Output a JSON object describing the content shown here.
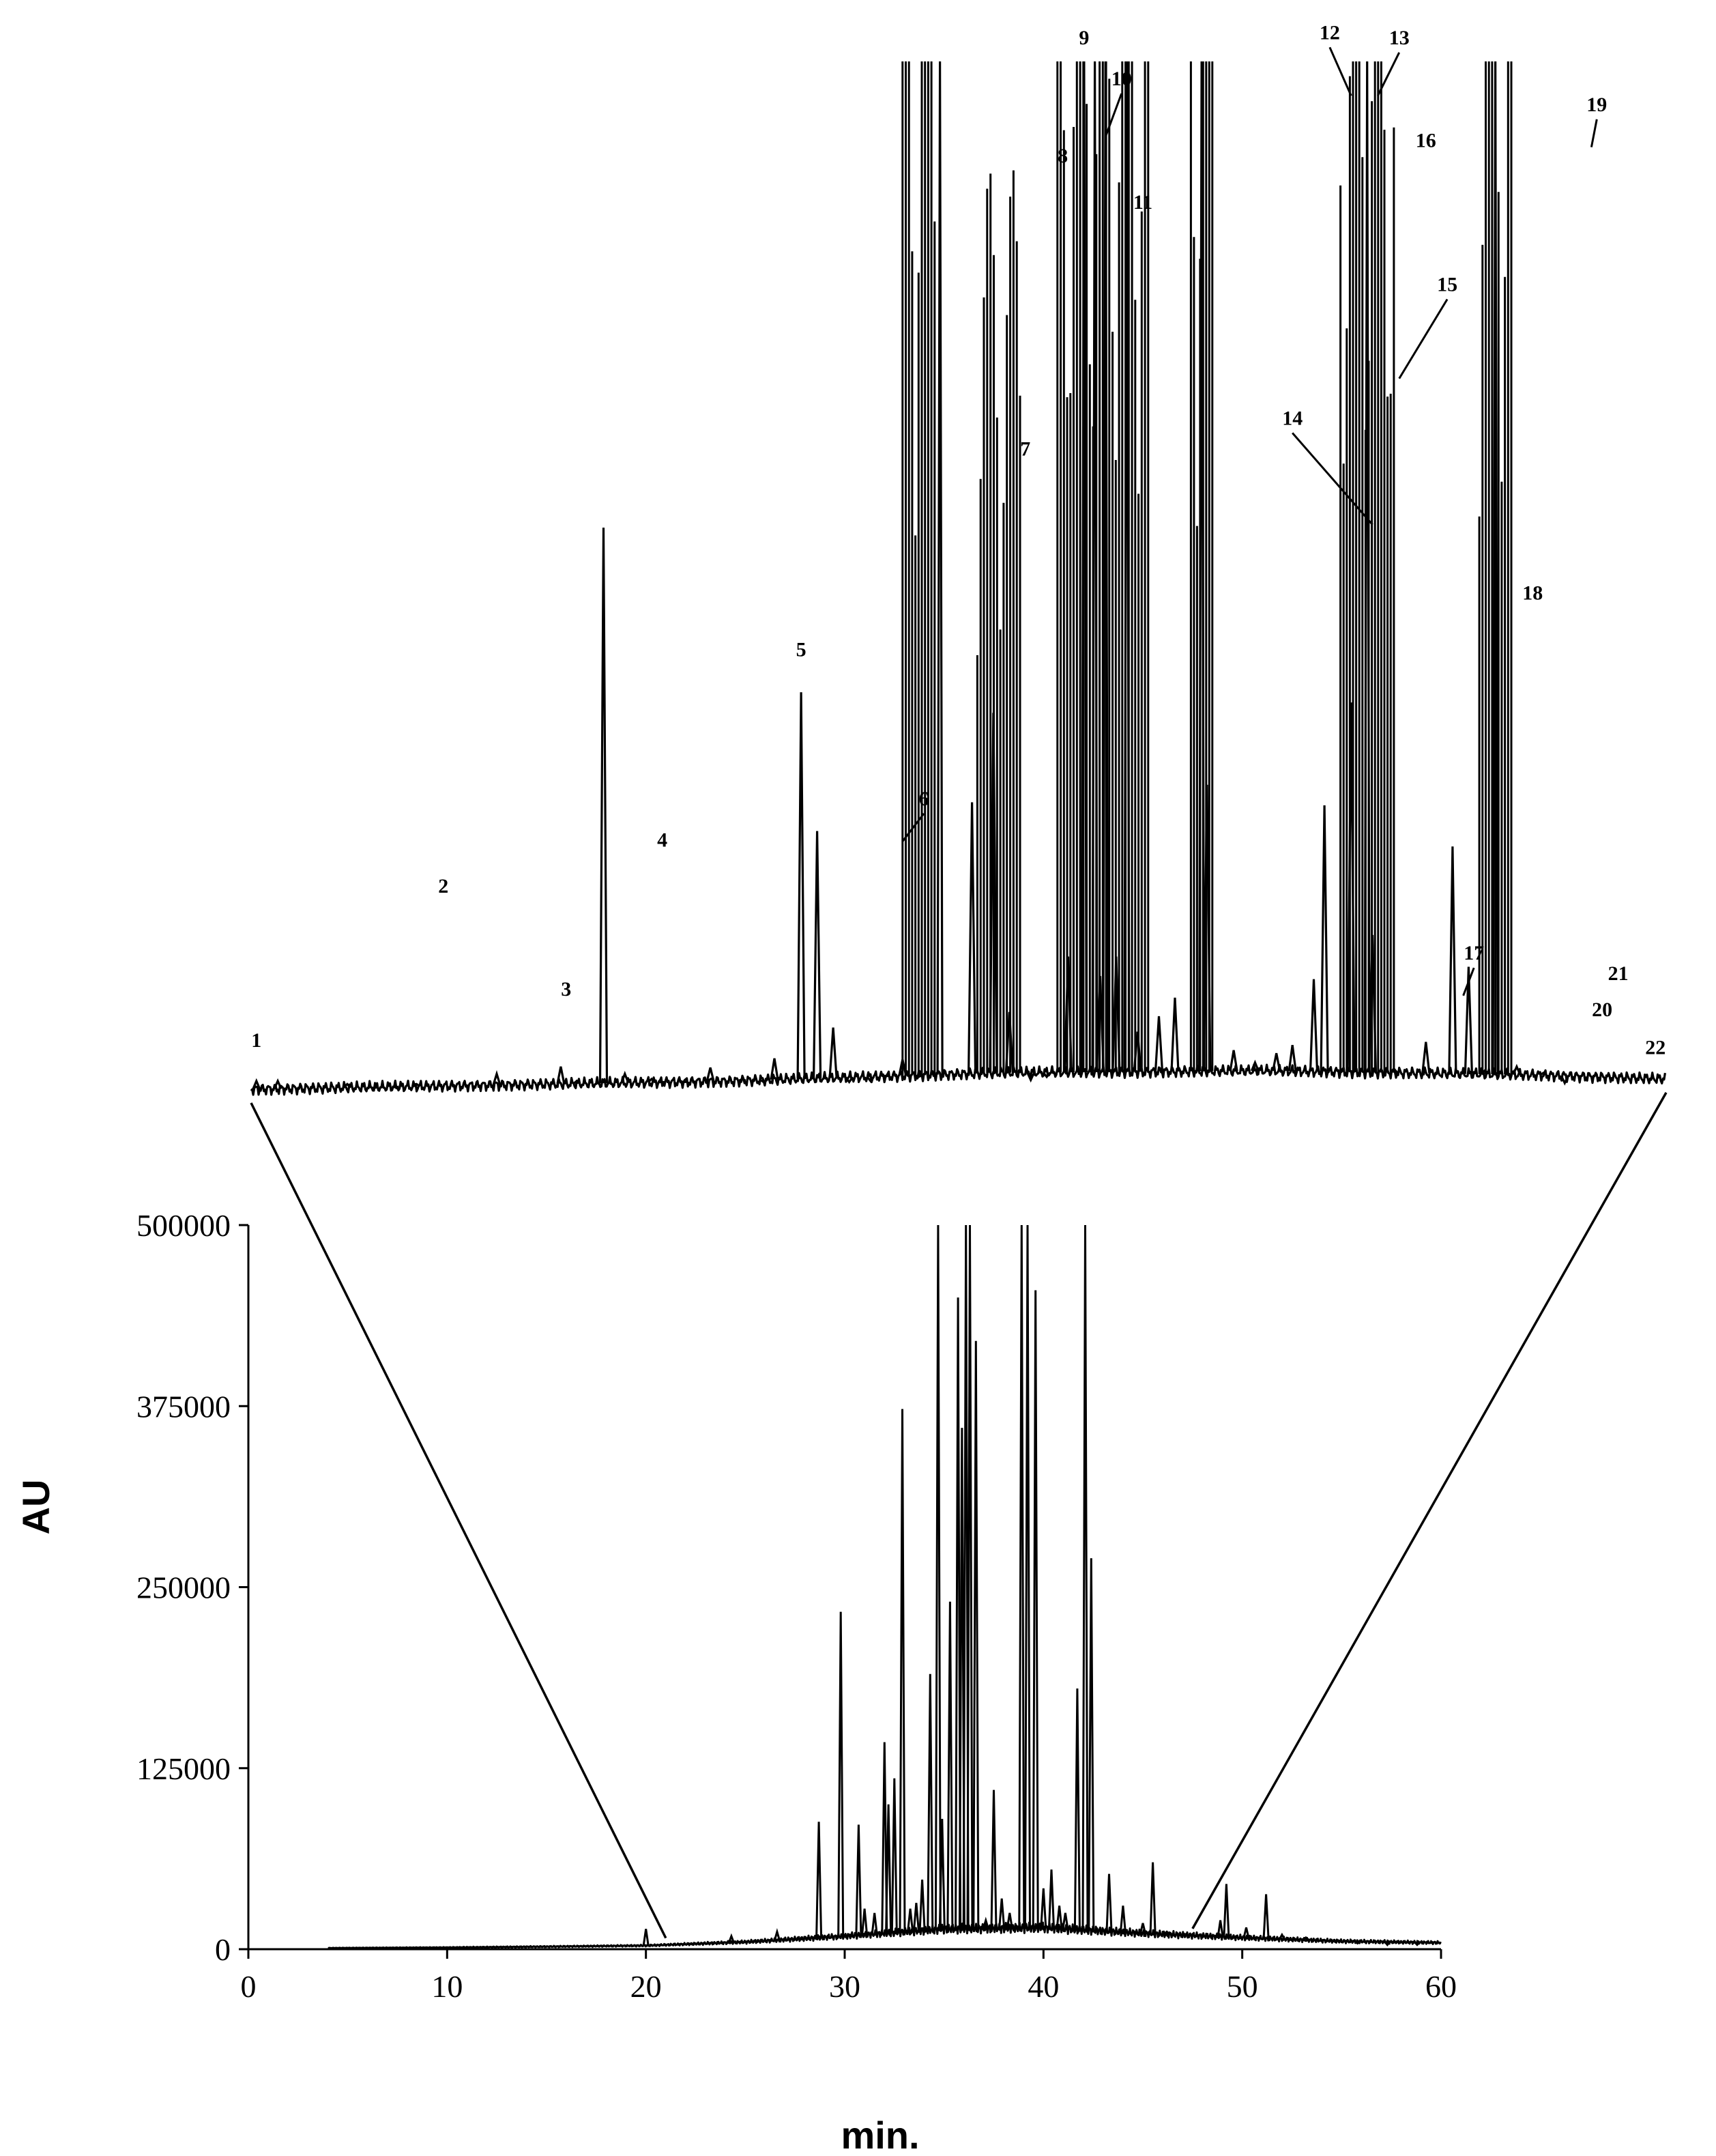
{
  "chart_data": [
    {
      "id": "full",
      "type": "line",
      "title": "",
      "xlabel": "min.",
      "ylabel": "AU",
      "xlim": [
        0,
        60
      ],
      "ylim": [
        0,
        500000
      ],
      "xticks": [
        "0",
        "10",
        "20",
        "30",
        "40",
        "50",
        "60"
      ],
      "yticks": [
        "0",
        "125000",
        "250000",
        "375000",
        "500000"
      ],
      "grid": false,
      "legend": "none",
      "baseline": [
        [
          4,
          800
        ],
        [
          10,
          1200
        ],
        [
          15,
          1800
        ],
        [
          20,
          2500
        ],
        [
          25,
          5000
        ],
        [
          30,
          9000
        ],
        [
          35,
          14000
        ],
        [
          40,
          15000
        ],
        [
          45,
          11000
        ],
        [
          50,
          8000
        ],
        [
          55,
          5500
        ],
        [
          60,
          4500
        ]
      ],
      "peaks": [
        [
          20.0,
          14000
        ],
        [
          24.3,
          9000
        ],
        [
          26.6,
          12000
        ],
        [
          28.7,
          88000
        ],
        [
          29.8,
          233000
        ],
        [
          30.3,
          10000
        ],
        [
          30.7,
          86000
        ],
        [
          31.0,
          28000
        ],
        [
          31.5,
          25000
        ],
        [
          32.0,
          143000
        ],
        [
          32.2,
          100000
        ],
        [
          32.5,
          118000
        ],
        [
          32.9,
          373000
        ],
        [
          33.3,
          28000
        ],
        [
          33.6,
          32000
        ],
        [
          33.9,
          48000
        ],
        [
          34.3,
          190000
        ],
        [
          34.7,
          500000
        ],
        [
          34.9,
          90000
        ],
        [
          35.3,
          240000
        ],
        [
          35.7,
          450000
        ],
        [
          35.9,
          360000
        ],
        [
          36.1,
          500000
        ],
        [
          36.3,
          500000
        ],
        [
          36.6,
          420000
        ],
        [
          37.1,
          20000
        ],
        [
          37.5,
          110000
        ],
        [
          37.9,
          35000
        ],
        [
          38.3,
          25000
        ],
        [
          38.9,
          500000
        ],
        [
          39.2,
          500000
        ],
        [
          39.6,
          455000
        ],
        [
          40.0,
          42000
        ],
        [
          40.4,
          55000
        ],
        [
          40.8,
          30000
        ],
        [
          41.1,
          25000
        ],
        [
          41.7,
          180000
        ],
        [
          42.1,
          500000
        ],
        [
          42.4,
          270000
        ],
        [
          43.3,
          52000
        ],
        [
          44.0,
          30000
        ],
        [
          45.0,
          18000
        ],
        [
          45.5,
          60000
        ],
        [
          46.2,
          12000
        ],
        [
          48.9,
          20000
        ],
        [
          49.2,
          45000
        ],
        [
          50.2,
          15000
        ],
        [
          51.2,
          38000
        ],
        [
          52.0,
          10000
        ],
        [
          53.2,
          8000
        ],
        [
          55.8,
          4000
        ],
        [
          57.3,
          3000
        ],
        [
          58.8,
          3000
        ]
      ]
    },
    {
      "id": "zoom",
      "type": "line",
      "title": "",
      "xlim": [
        21,
        47.5
      ],
      "ylim": [
        0,
        100
      ],
      "axes_visible": false,
      "baseline": [
        [
          21,
          0.4
        ],
        [
          30,
          1.2
        ],
        [
          35,
          2.0
        ],
        [
          40,
          2.2
        ],
        [
          45,
          1.8
        ],
        [
          47.5,
          1.4
        ]
      ],
      "peaks": [
        [
          21.1,
          1.2
        ],
        [
          21.5,
          1.2
        ],
        [
          22.8,
          0.9
        ],
        [
          23.3,
          0.5
        ],
        [
          23.7,
          0.6
        ],
        [
          24.1,
          0.9
        ],
        [
          25.6,
          1.9
        ],
        [
          26.8,
          2.6
        ],
        [
          27.1,
          1.2
        ],
        [
          27.6,
          55.0
        ],
        [
          28.0,
          1.9
        ],
        [
          28.5,
          1.4
        ],
        [
          28.7,
          1.1
        ],
        [
          29.1,
          1.1
        ],
        [
          29.6,
          2.5
        ],
        [
          30.2,
          1.4
        ],
        [
          30.6,
          1.1
        ],
        [
          30.8,
          3.4
        ],
        [
          31.3,
          39.0
        ],
        [
          31.6,
          25.5
        ],
        [
          31.9,
          6.4
        ],
        [
          32.2,
          1.1
        ],
        [
          32.6,
          1.2
        ],
        [
          32.9,
          1.7
        ],
        [
          33.2,
          3.3
        ],
        [
          33.5,
          1.6
        ],
        [
          34.5,
          28.3
        ],
        [
          34.9,
          37.0
        ],
        [
          35.2,
          7.9
        ],
        [
          35.6,
          1.3
        ],
        [
          35.9,
          1.6
        ],
        [
          36.3,
          13.3
        ],
        [
          36.9,
          11.4
        ],
        [
          37.2,
          13.3
        ],
        [
          37.6,
          6.0
        ],
        [
          38.0,
          7.5
        ],
        [
          38.3,
          9.3
        ],
        [
          38.9,
          30.0
        ],
        [
          39.4,
          4.2
        ],
        [
          39.8,
          3.0
        ],
        [
          40.2,
          3.9
        ],
        [
          40.5,
          4.7
        ],
        [
          40.9,
          11.1
        ],
        [
          41.1,
          28.0
        ],
        [
          41.6,
          38.0
        ],
        [
          42.0,
          15.4
        ],
        [
          42.4,
          2.4
        ],
        [
          43.0,
          5.0
        ],
        [
          43.5,
          24.0
        ],
        [
          43.8,
          12.3
        ],
        [
          44.1,
          2.2
        ],
        [
          44.7,
          2.6
        ],
        [
          45.2,
          2.0
        ],
        [
          45.6,
          1.0
        ]
      ],
      "clipped_peaks": [
        [
          33.9,
          118.0
        ],
        [
          36.6,
          104.0
        ],
        [
          36.8,
          118.0
        ],
        [
          37.0,
          119.0
        ],
        [
          37.4,
          115.0
        ],
        [
          38.8,
          120.0
        ],
        [
          41.9,
          119.0
        ],
        [
          44.3,
          122.0
        ]
      ],
      "dense_region": [
        [
          33.2,
          33.8,
          118.0
        ],
        [
          34.6,
          35.4,
          90.0
        ],
        [
          36.1,
          37.8,
          119.0
        ],
        [
          38.6,
          39.0,
          120.0
        ],
        [
          41.4,
          42.4,
          119.0
        ],
        [
          44.0,
          44.6,
          122.0
        ]
      ]
    }
  ],
  "annotations": [
    {
      "label": "1",
      "x": 21.1,
      "y": 4.5,
      "tip": null
    },
    {
      "label": "2",
      "x": 24.6,
      "y": 19.5,
      "tip": null
    },
    {
      "label": "3",
      "x": 26.9,
      "y": 9.5,
      "tip": null
    },
    {
      "label": "4",
      "x": 28.7,
      "y": 24.0,
      "tip": null
    },
    {
      "label": "5",
      "x": 31.3,
      "y": 42.5,
      "tip": null
    },
    {
      "label": "6",
      "x": 33.6,
      "y": 28.0,
      "tip": [
        33.2,
        24.5
      ]
    },
    {
      "label": "7",
      "x": 35.5,
      "y": 62.0,
      "tip": null
    },
    {
      "label": "8",
      "x": 36.2,
      "y": 90.5,
      "tip": null
    },
    {
      "label": "9",
      "x": 36.6,
      "y": 102.0,
      "tip": null
    },
    {
      "label": "10",
      "x": 37.3,
      "y": 98.0,
      "tip": [
        37.0,
        93.0
      ]
    },
    {
      "label": "11",
      "x": 37.7,
      "y": 86.0,
      "tip": null
    },
    {
      "label": "12",
      "x": 41.2,
      "y": 102.5,
      "tip": [
        41.6,
        97.0
      ]
    },
    {
      "label": "13",
      "x": 42.5,
      "y": 102.0,
      "tip": [
        42.1,
        97.0
      ]
    },
    {
      "label": "14",
      "x": 40.5,
      "y": 65.0,
      "tip": [
        42.0,
        55.3
      ]
    },
    {
      "label": "15",
      "x": 43.4,
      "y": 78.0,
      "tip": [
        42.5,
        69.5
      ]
    },
    {
      "label": "16",
      "x": 43.0,
      "y": 92.0,
      "tip": null
    },
    {
      "label": "17",
      "x": 43.9,
      "y": 13.0,
      "tip": [
        43.7,
        9.5
      ]
    },
    {
      "label": "18",
      "x": 45.0,
      "y": 48.0,
      "tip": null
    },
    {
      "label": "19",
      "x": 46.2,
      "y": 95.5,
      "tip": [
        46.1,
        92.0
      ]
    },
    {
      "label": "20",
      "x": 46.3,
      "y": 7.5,
      "tip": null
    },
    {
      "label": "21",
      "x": 46.6,
      "y": 11.0,
      "tip": null
    },
    {
      "label": "22",
      "x": 47.3,
      "y": 3.8,
      "tip": null
    }
  ]
}
